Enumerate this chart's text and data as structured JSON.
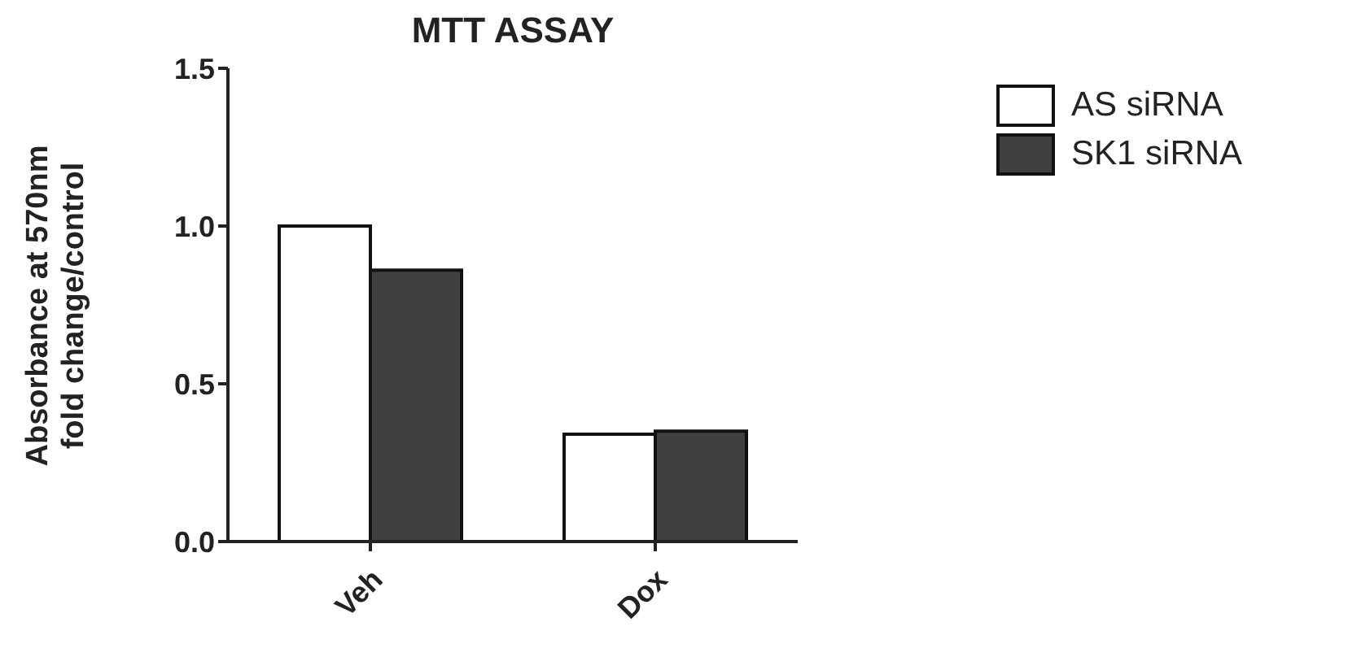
{
  "chart_data": {
    "type": "bar",
    "title": "MTT ASSAY",
    "ylabel": "Absorbance at 570nm\nfold change/control",
    "categories": [
      "Veh",
      "Dox"
    ],
    "series": [
      {
        "name": "AS siRNA",
        "color": "#ffffff",
        "values": [
          1.0,
          0.34
        ]
      },
      {
        "name": "SK1 siRNA",
        "color": "#404040",
        "values": [
          0.86,
          0.35
        ]
      }
    ],
    "ylim": [
      0,
      1.5
    ],
    "yticks": [
      {
        "value": 0,
        "label": "0.0"
      },
      {
        "value": 0.5,
        "label": "0.5"
      },
      {
        "value": 1,
        "label": "1.0"
      },
      {
        "value": 1.5,
        "label": "1.5"
      }
    ],
    "grid": false,
    "legend": "top right"
  }
}
